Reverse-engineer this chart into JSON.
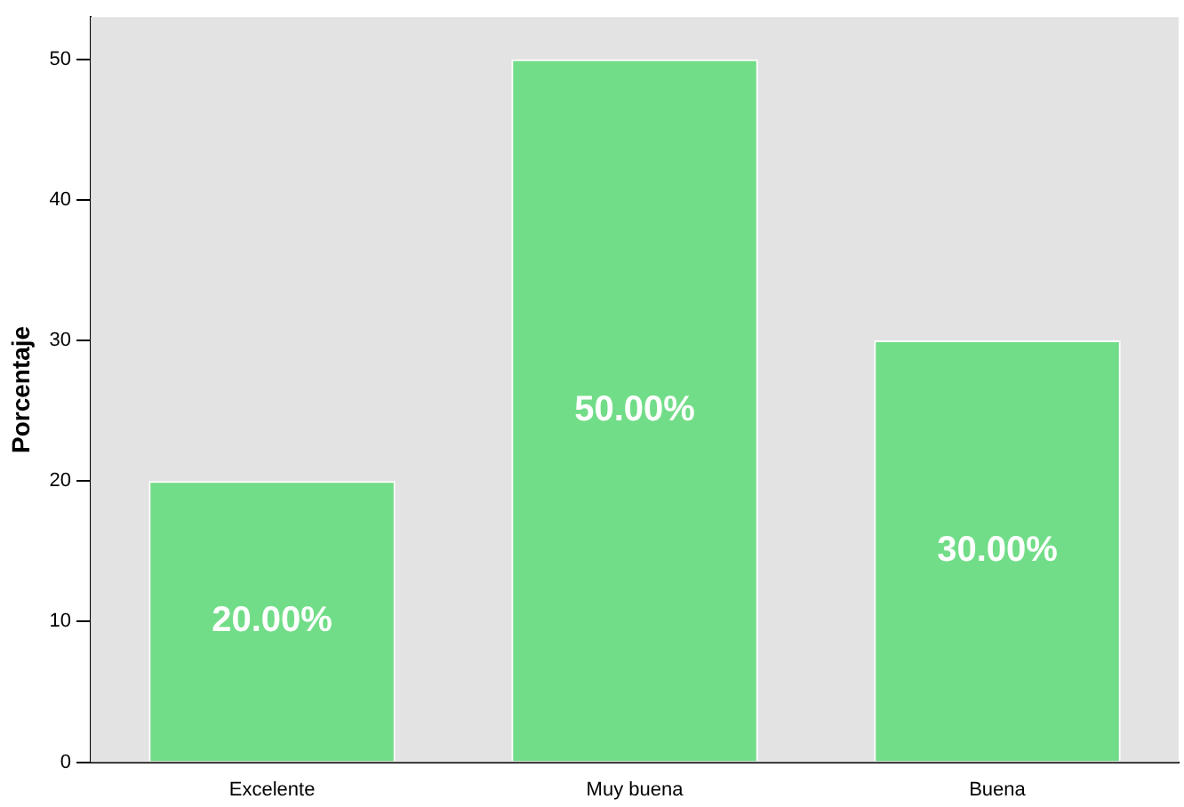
{
  "chart_data": {
    "type": "bar",
    "ylabel": "Porcentaje",
    "categories": [
      "Excelente",
      "Muy buena",
      "Buena"
    ],
    "values": [
      20,
      50,
      30
    ],
    "color": "#72dd88",
    "value_labels": [
      "20.00%",
      "50.00%",
      "30.00%"
    ],
    "ylim": [
      0,
      53
    ],
    "yticks": [
      0,
      10,
      20,
      30,
      40,
      50
    ],
    "grid": false,
    "legend": false
  }
}
